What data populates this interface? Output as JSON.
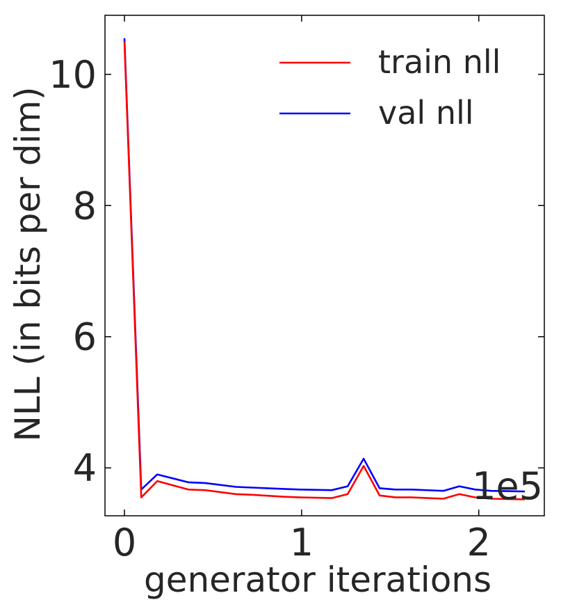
{
  "chart_data": {
    "type": "line",
    "title": "",
    "xlabel": "generator iterations",
    "ylabel": "NLL (in bits per dim)",
    "x_offset_label": "1e5",
    "xlim": [
      -0.11,
      2.37
    ],
    "ylim": [
      3.27,
      10.9
    ],
    "x_ticks": [
      0,
      1,
      2
    ],
    "x_tick_labels": [
      "0",
      "1",
      "2"
    ],
    "y_ticks": [
      4,
      6,
      8,
      10
    ],
    "y_tick_labels": [
      "4",
      "6",
      "8",
      "10"
    ],
    "grid": false,
    "legend_position": "top-right",
    "x": [
      0,
      0.095,
      0.185,
      0.36,
      0.455,
      0.63,
      0.72,
      0.9,
      0.99,
      1.17,
      1.26,
      1.35,
      1.44,
      1.53,
      1.62,
      1.8,
      1.89,
      1.98,
      2.07,
      2.26
    ],
    "series": [
      {
        "name": "train nll",
        "color": "#ff0000",
        "values": [
          10.5,
          3.55,
          3.8,
          3.67,
          3.66,
          3.6,
          3.59,
          3.56,
          3.55,
          3.54,
          3.6,
          4.03,
          3.58,
          3.55,
          3.55,
          3.53,
          3.6,
          3.55,
          3.53,
          3.52
        ]
      },
      {
        "name": "val nll",
        "color": "#0000ff",
        "values": [
          10.55,
          3.67,
          3.9,
          3.78,
          3.77,
          3.71,
          3.7,
          3.68,
          3.67,
          3.66,
          3.72,
          4.14,
          3.69,
          3.67,
          3.67,
          3.65,
          3.72,
          3.67,
          3.65,
          3.64
        ]
      }
    ]
  }
}
